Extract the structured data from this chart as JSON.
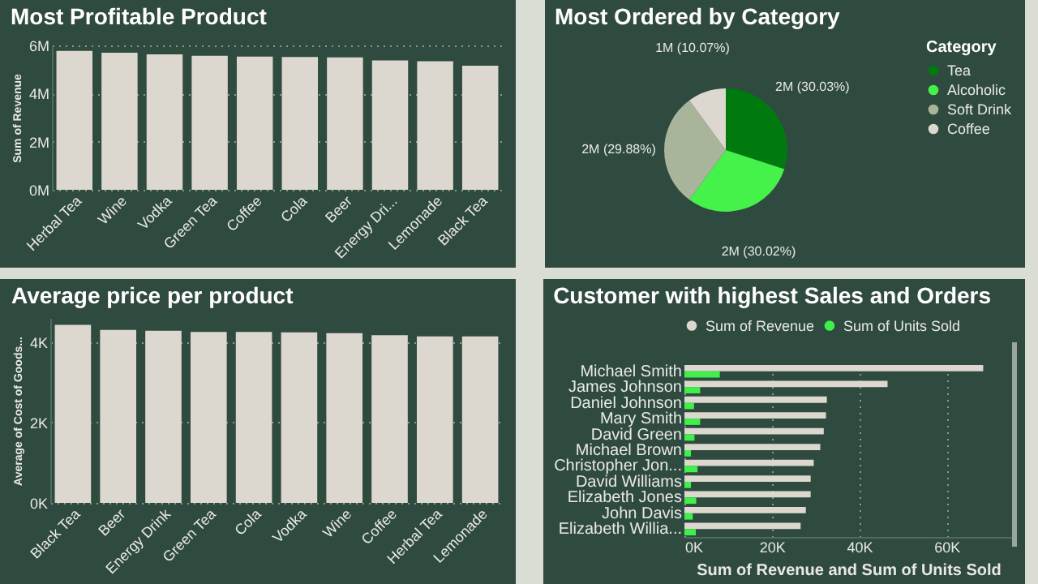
{
  "chart_data": [
    {
      "type": "bar",
      "title": "Most Profitable Product",
      "ylabel": "Sum of Revenue",
      "categories": [
        "Herbal Tea",
        "Wine",
        "Vodka",
        "Green Tea",
        "Coffee",
        "Cola",
        "Beer",
        "Energy Dri...",
        "Lemonade",
        "Black Tea"
      ],
      "values": [
        5770000,
        5700000,
        5630000,
        5570000,
        5540000,
        5520000,
        5500000,
        5380000,
        5340000,
        5160000
      ],
      "color": "#dcd8cf",
      "ylim": [
        0,
        6000000
      ],
      "yticks": [
        {
          "value": 0,
          "label": "0M"
        },
        {
          "value": 2000000,
          "label": "2M"
        },
        {
          "value": 4000000,
          "label": "4M"
        },
        {
          "value": 6000000,
          "label": "6M"
        }
      ],
      "grid": "y"
    },
    {
      "type": "pie",
      "title": "Most Ordered by Category",
      "legend_title": "Category",
      "legend": "right",
      "categories": [
        "Tea",
        "Alcoholic",
        "Soft Drink",
        "Coffee"
      ],
      "values": [
        30.03,
        30.02,
        29.88,
        10.07
      ],
      "colors": [
        "#007a0f",
        "#44f24a",
        "#a9b59a",
        "#dcd8cf"
      ],
      "value_labels": [
        "2M (30.03%)",
        "2M (30.02%)",
        "2M (29.88%)",
        "1M (10.07%)"
      ]
    },
    {
      "type": "bar",
      "title": "Average price per product",
      "ylabel": "Average of Cost of Goods...",
      "categories": [
        "Black Tea",
        "Beer",
        "Energy Drink",
        "Green Tea",
        "Cola",
        "Vodka",
        "Wine",
        "Coffee",
        "Herbal Tea",
        "Lemonade"
      ],
      "values": [
        4430,
        4300,
        4280,
        4250,
        4250,
        4240,
        4220,
        4170,
        4140,
        4140
      ],
      "color": "#dcd8cf",
      "ylim": [
        0,
        4600
      ],
      "yticks": [
        {
          "value": 0,
          "label": "0K"
        },
        {
          "value": 2000,
          "label": "2K"
        },
        {
          "value": 4000,
          "label": "4K"
        }
      ],
      "grid": "y"
    },
    {
      "type": "bar",
      "orientation": "horizontal",
      "title": "Customer with highest Sales and Orders",
      "xlabel": "Sum of Revenue and Sum of Units Sold",
      "legend": "top left",
      "categories": [
        "Michael Smith",
        "James Johnson",
        "Daniel Johnson",
        "Mary Smith",
        "David Green",
        "Michael Brown",
        "Christopher Jon...",
        "David Williams",
        "Elizabeth Jones",
        "John Davis",
        "Elizabeth Willia..."
      ],
      "series": [
        {
          "name": "Sum of Revenue",
          "color": "#dcd8cf",
          "values": [
            68400,
            46500,
            32600,
            32400,
            31900,
            31100,
            29600,
            28900,
            28900,
            27800,
            26600
          ]
        },
        {
          "name": "Sum of Units Sold",
          "color": "#3ff04a",
          "values": [
            8100,
            3600,
            2200,
            3600,
            2300,
            1500,
            3000,
            1500,
            2700,
            1900,
            2600
          ]
        }
      ],
      "xlim": [
        0,
        75000
      ],
      "xticks": [
        {
          "value": 0,
          "label": "0K"
        },
        {
          "value": 20000,
          "label": "20K"
        },
        {
          "value": 40000,
          "label": "40K"
        },
        {
          "value": 60000,
          "label": "60K"
        }
      ],
      "grid": "x"
    }
  ]
}
